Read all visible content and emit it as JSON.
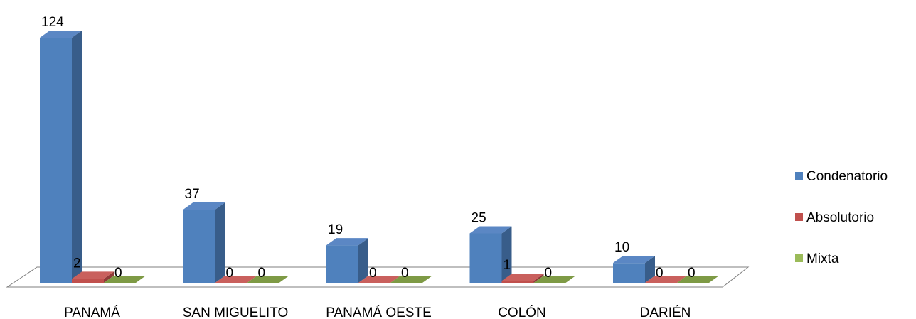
{
  "chart_data": {
    "type": "bar",
    "categories": [
      "PANAMÁ",
      "SAN MIGUELITO",
      "PANAMÁ OESTE",
      "COLÓN",
      "DARIÉN"
    ],
    "series": [
      {
        "name": "Condenatorio",
        "values": [
          124,
          37,
          19,
          25,
          10
        ],
        "color": "#4F81BD",
        "side": "#385D8A",
        "top": "#5B87C4"
      },
      {
        "name": "Absolutorio",
        "values": [
          2,
          0,
          0,
          1,
          0
        ],
        "color": "#C0504D",
        "side": "#8E3A38",
        "top": "#C9605D"
      },
      {
        "name": "Mixta",
        "values": [
          0,
          0,
          0,
          0,
          0
        ],
        "color": "#9BBB59",
        "side": "#71893F",
        "top": "#7E9A45"
      }
    ],
    "ylim": [
      0,
      124
    ],
    "grid": false,
    "legend": "right",
    "style": "3d-column"
  }
}
